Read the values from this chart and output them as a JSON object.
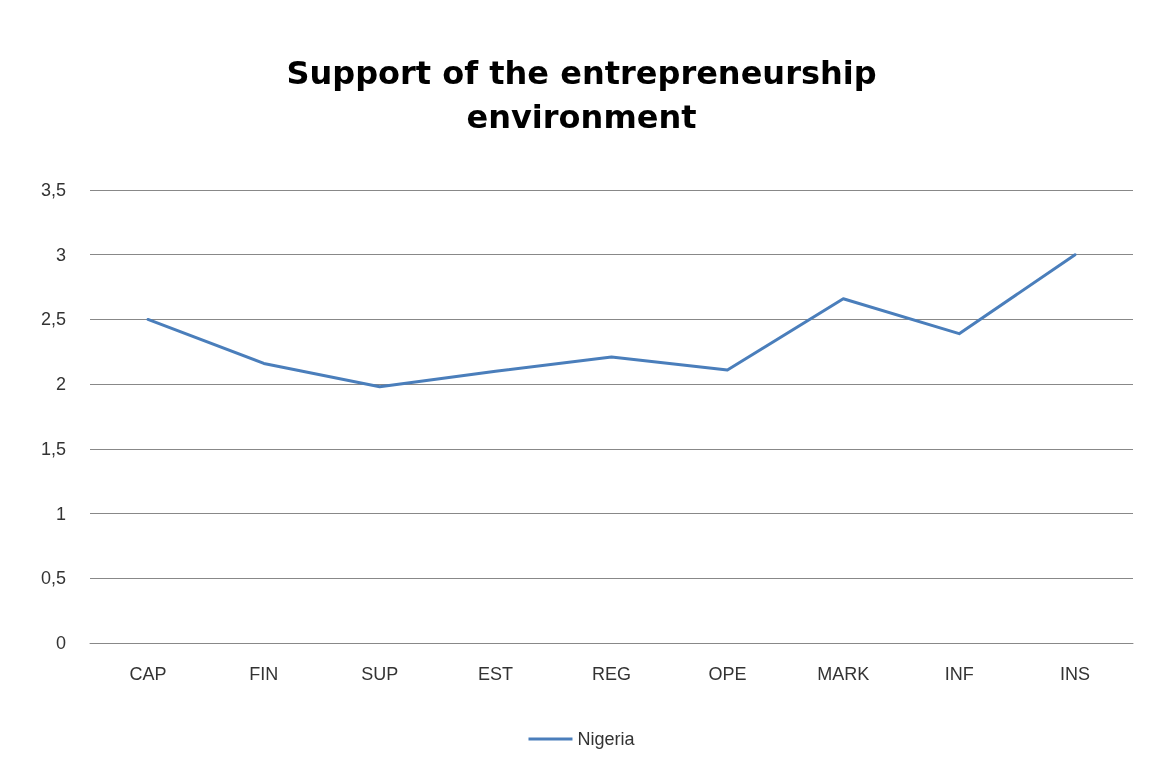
{
  "chart_data": {
    "type": "line",
    "title": "Support of the entrepreneurship\nenvironment",
    "categories": [
      "CAP",
      "FIN",
      "SUP",
      "EST",
      "REG",
      "OPE",
      "MARK",
      "INF",
      "INS"
    ],
    "series": [
      {
        "name": "Nigeria",
        "color": "#4a7ebb",
        "values": [
          2.5,
          2.16,
          1.98,
          2.1,
          2.21,
          2.11,
          2.66,
          2.39,
          3.0
        ]
      }
    ],
    "ylim": [
      0,
      3.5
    ],
    "yticks": [
      0,
      {
        "value": 0.5,
        "label": "0,5"
      },
      1,
      {
        "value": 1.5,
        "label": "1,5"
      },
      2,
      {
        "value": 2.5,
        "label": "2,5"
      },
      3,
      {
        "value": 3.5,
        "label": "3,5"
      }
    ],
    "grid": "y",
    "legend": "bottom",
    "marker": "none",
    "line_style": "solid"
  }
}
